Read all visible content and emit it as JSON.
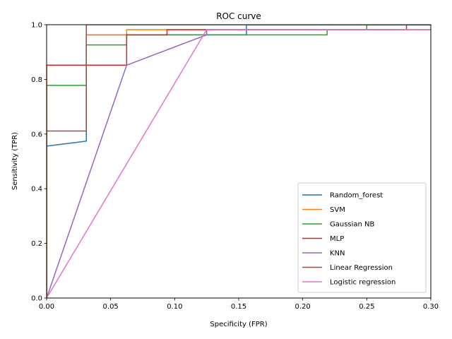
{
  "chart_data": {
    "type": "line",
    "title": "ROC curve",
    "xlabel": "Specificity (FPR)",
    "ylabel": "Sensitivity (TPR)",
    "xlim": [
      0,
      0.3
    ],
    "ylim": [
      0,
      1.0
    ],
    "xticks": [
      0,
      0.05,
      0.1,
      0.15,
      0.2,
      0.25,
      0.3
    ],
    "xtick_labels": [
      "0.00",
      "0.05",
      "0.10",
      "0.15",
      "0.20",
      "0.25",
      "0.30"
    ],
    "yticks": [
      0,
      0.2,
      0.4,
      0.6,
      0.8,
      1.0
    ],
    "ytick_labels": [
      "0.0",
      "0.2",
      "0.4",
      "0.6",
      "0.8",
      "1.0"
    ],
    "grid": false,
    "legend_position": "lower-right",
    "series": [
      {
        "name": "Random_forest",
        "color": "#1f77b4",
        "points": [
          [
            0,
            0
          ],
          [
            0,
            0.556
          ],
          [
            0.031,
            0.574
          ],
          [
            0.031,
            0.963
          ],
          [
            0.156,
            0.963
          ],
          [
            0.156,
            1.0
          ],
          [
            0.3,
            1.0
          ]
        ]
      },
      {
        "name": "SVM",
        "color": "#ff7f0e",
        "points": [
          [
            0,
            0
          ],
          [
            0,
            0.852
          ],
          [
            0.031,
            0.852
          ],
          [
            0.031,
            0.963
          ],
          [
            0.0625,
            0.963
          ],
          [
            0.0625,
            0.982
          ],
          [
            0.125,
            0.982
          ],
          [
            0.125,
            0.982
          ],
          [
            0.3,
            0.982
          ]
        ]
      },
      {
        "name": "Gaussian NB",
        "color": "#2ca02c",
        "points": [
          [
            0,
            0
          ],
          [
            0,
            0.778
          ],
          [
            0.031,
            0.778
          ],
          [
            0.031,
            0.926
          ],
          [
            0.0625,
            0.926
          ],
          [
            0.0625,
            0.963
          ],
          [
            0.219,
            0.963
          ],
          [
            0.219,
            0.982
          ],
          [
            0.25,
            0.982
          ],
          [
            0.25,
            1.0
          ],
          [
            0.3,
            1.0
          ]
        ]
      },
      {
        "name": "MLP",
        "color": "#d62728",
        "points": [
          [
            0,
            0
          ],
          [
            0,
            0.852
          ],
          [
            0.0625,
            0.852
          ],
          [
            0.0625,
            0.963
          ],
          [
            0.094,
            0.963
          ],
          [
            0.094,
            0.982
          ],
          [
            0.281,
            0.982
          ],
          [
            0.281,
            1.0
          ],
          [
            0.3,
            1.0
          ]
        ]
      },
      {
        "name": "KNN",
        "color": "#9467bd",
        "points": [
          [
            0,
            0
          ],
          [
            0.0625,
            0.852
          ],
          [
            0.125,
            0.963
          ],
          [
            0.125,
            0.982
          ],
          [
            0.3,
            0.982
          ]
        ]
      },
      {
        "name": "Linear Regression",
        "color": "#8c564b",
        "points": [
          [
            0,
            0
          ],
          [
            0,
            0.611
          ],
          [
            0.031,
            0.611
          ],
          [
            0.031,
            1.0
          ],
          [
            0.3,
            1.0
          ]
        ]
      },
      {
        "name": "Logistic regression",
        "color": "#e377c2",
        "points": [
          [
            0,
            0
          ],
          [
            0.125,
            0.982
          ],
          [
            0.3,
            0.982
          ]
        ]
      }
    ]
  }
}
